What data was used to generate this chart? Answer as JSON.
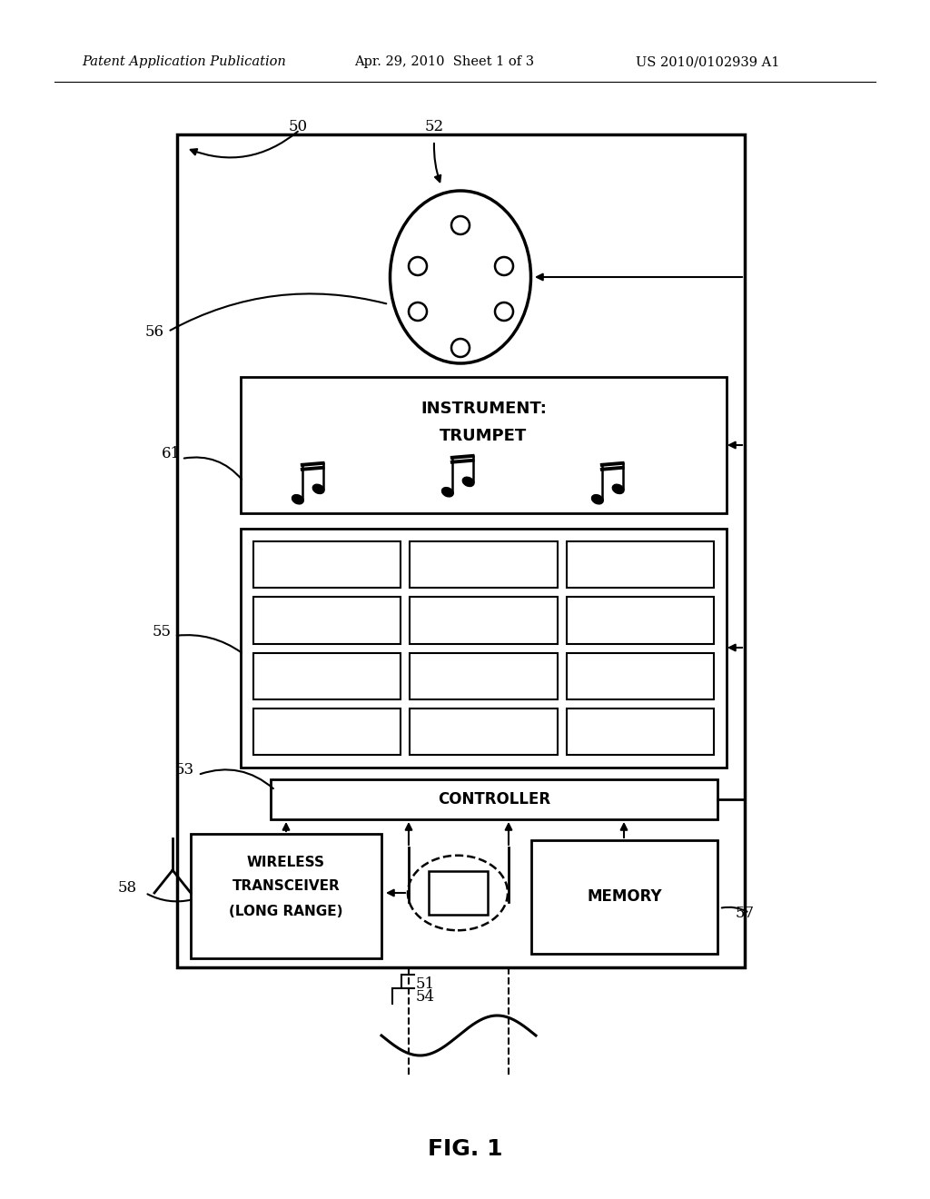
{
  "header_left": "Patent Application Publication",
  "header_center": "Apr. 29, 2010  Sheet 1 of 3",
  "header_right": "US 2010/0102939 A1",
  "fig_label": "FIG. 1",
  "bg_color": "#ffffff",
  "line_color": "#000000"
}
